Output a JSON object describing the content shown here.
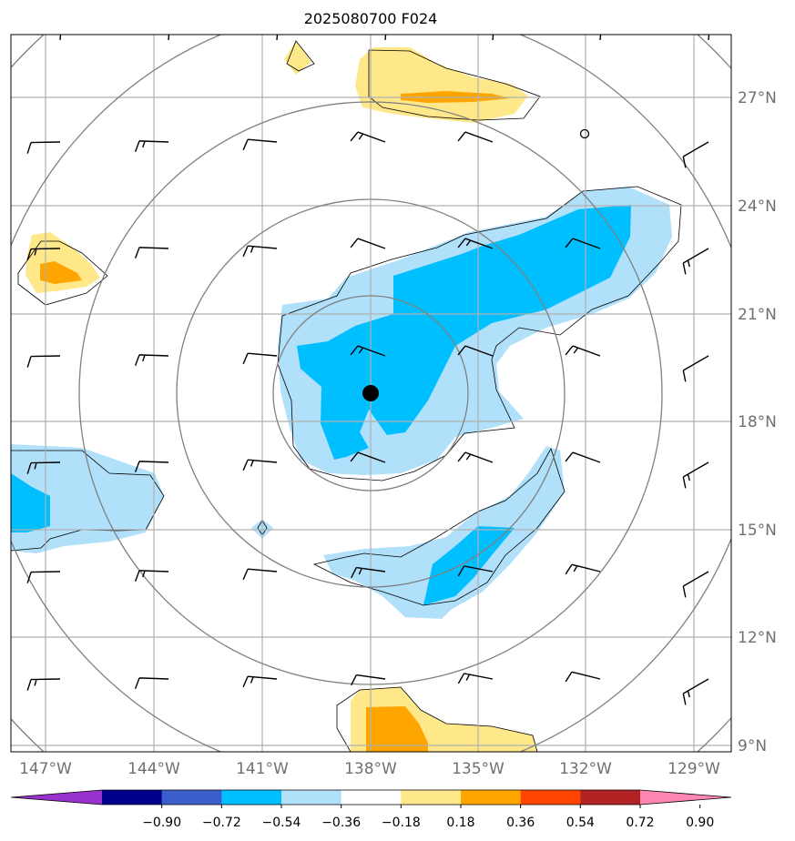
{
  "title": "2025080700 F024",
  "lat_labels": [
    "27°N",
    "24°N",
    "21°N",
    "18°N",
    "15°N",
    "12°N",
    "9°N"
  ],
  "lon_labels": [
    "147°W",
    "144°W",
    "141°W",
    "138°W",
    "135°W",
    "132°W",
    "129°W"
  ],
  "colorbar": {
    "ticks": [
      "−0.90",
      "−0.72",
      "−0.54",
      "−0.36",
      "−0.18",
      "0.18",
      "0.36",
      "0.54",
      "0.72",
      "0.90"
    ],
    "colors": [
      "#9932cc",
      "#00008b",
      "#3a5fcd",
      "#00bfff",
      "#b0e0fa",
      "#ffffff",
      "#ffe88a",
      "#ffa500",
      "#ff4500",
      "#b22222",
      "#ff86b4"
    ]
  },
  "colors": {
    "light_blue": "#b0e0fa",
    "blue": "#00bfff",
    "light_yellow": "#ffe88a",
    "orange": "#ffa500",
    "grid": "#b0b0b0",
    "rings": "#808080"
  },
  "storm_center": {
    "lat": 18.8,
    "lon": -138.0
  }
}
